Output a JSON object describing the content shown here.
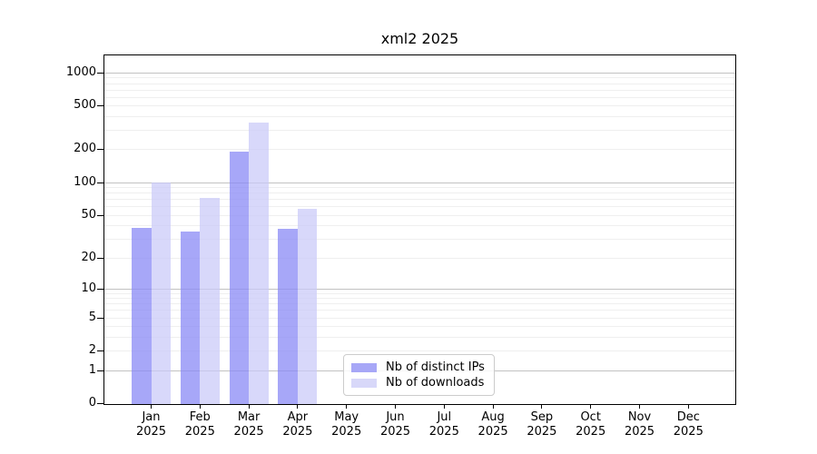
{
  "chart_data": {
    "type": "bar",
    "title": "xml2 2025",
    "y_scale": "log10(value+1)",
    "ylim": [
      0,
      1000
    ],
    "y_ticks": [
      0,
      1,
      2,
      5,
      10,
      20,
      50,
      100,
      200,
      500,
      1000
    ],
    "grid": "horizontal log minor+major, on",
    "months": [
      "Jan",
      "Feb",
      "Mar",
      "Apr",
      "May",
      "Jun",
      "Jul",
      "Aug",
      "Sep",
      "Oct",
      "Nov",
      "Dec"
    ],
    "year": "2025",
    "categories": [
      "Jan 2025",
      "Feb 2025",
      "Mar 2025",
      "Apr 2025",
      "May 2025",
      "Jun 2025",
      "Jul 2025",
      "Aug 2025",
      "Sep 2025",
      "Oct 2025",
      "Nov 2025",
      "Dec 2025"
    ],
    "series": [
      {
        "name": "Nb of distinct IPs",
        "color": "#a7a7f7",
        "fill": "rgba(138,138,246,0.75)",
        "values": [
          38,
          35,
          191,
          37,
          0,
          0,
          0,
          0,
          0,
          0,
          0,
          0
        ]
      },
      {
        "name": "Nb of downloads",
        "color": "#d8d8f9",
        "fill": "rgba(201,201,248,0.72)",
        "values": [
          100,
          72,
          352,
          57,
          0,
          0,
          0,
          0,
          0,
          0,
          0,
          0
        ]
      }
    ],
    "legend": {
      "position": "bottom-center-inside",
      "labels": [
        "Nb of distinct IPs",
        "Nb of downloads"
      ]
    }
  }
}
